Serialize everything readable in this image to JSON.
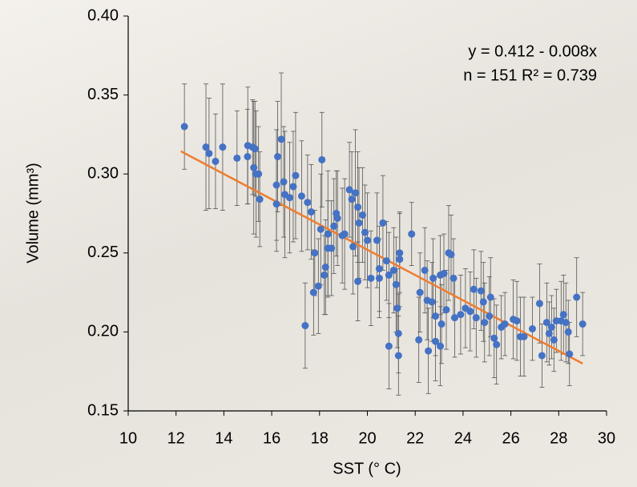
{
  "chart_data": {
    "type": "scatter",
    "x_label": "SST (° C)",
    "y_label": "Volume (mm³)",
    "equation": "y = 0.412 - 0.008x",
    "stats": "n = 151  R² = 0.739",
    "xlim": [
      10,
      30
    ],
    "xticks": [
      10,
      12,
      14,
      16,
      18,
      20,
      22,
      24,
      26,
      28,
      30
    ],
    "ylim": [
      0.15,
      0.4
    ],
    "yticks": [
      0.15,
      {
        "value": 0.2,
        "label": "0.20"
      },
      0.25,
      {
        "value": 0.3,
        "label": "0.30"
      },
      0.35,
      {
        "value": 0.4,
        "label": "0.40"
      }
    ],
    "grid": false,
    "color": "#4472c4",
    "error_color": "#555555",
    "trendline": {
      "intercept": 0.412,
      "slope": -0.008,
      "x_range": [
        12.2,
        29.0
      ],
      "color": "#ed7d31"
    },
    "x": [
      12.35,
      13.25,
      13.38,
      13.65,
      13.95,
      14.55,
      14.99,
      15.0,
      15.2,
      15.25,
      15.3,
      15.35,
      15.45,
      15.5,
      16.2,
      16.2,
      16.25,
      16.4,
      16.5,
      16.55,
      16.75,
      16.9,
      17.0,
      17.25,
      17.4,
      17.5,
      17.65,
      17.75,
      17.8,
      17.95,
      18.1,
      18.05,
      18.2,
      18.25,
      18.35,
      18.35,
      18.5,
      18.6,
      18.7,
      18.75,
      18.95,
      19.05,
      19.25,
      19.35,
      19.4,
      19.5,
      19.6,
      19.6,
      19.65,
      19.8,
      19.9,
      20.0,
      20.15,
      20.4,
      20.5,
      20.5,
      20.65,
      20.8,
      20.9,
      20.9,
      21.1,
      21.2,
      21.25,
      21.3,
      21.3,
      21.35,
      21.35,
      21.85,
      22.15,
      22.2,
      22.4,
      22.5,
      22.55,
      22.7,
      22.75,
      22.85,
      22.85,
      23.05,
      23.05,
      23.1,
      23.2,
      23.3,
      23.4,
      23.5,
      23.6,
      23.65,
      23.9,
      24.1,
      24.3,
      24.45,
      24.55,
      24.75,
      24.85,
      24.9,
      25.1,
      25.15,
      25.3,
      25.4,
      25.6,
      25.75,
      26.1,
      26.25,
      26.4,
      26.55,
      26.9,
      27.2,
      27.3,
      27.5,
      27.6,
      27.7,
      27.8,
      27.9,
      28.1,
      28.2,
      28.3,
      28.4,
      28.45,
      28.75,
      29.0
    ],
    "values": [
      0.33,
      0.317,
      0.313,
      0.308,
      0.317,
      0.31,
      0.311,
      0.318,
      0.317,
      0.304,
      0.316,
      0.3,
      0.3,
      0.284,
      0.293,
      0.281,
      0.311,
      0.322,
      0.295,
      0.287,
      0.285,
      0.292,
      0.299,
      0.286,
      0.204,
      0.282,
      0.276,
      0.225,
      0.25,
      0.229,
      0.309,
      0.265,
      0.236,
      0.241,
      0.262,
      0.253,
      0.253,
      0.267,
      0.275,
      0.272,
      0.261,
      0.262,
      0.29,
      0.284,
      0.254,
      0.288,
      0.279,
      0.232,
      0.269,
      0.274,
      0.263,
      0.258,
      0.234,
      0.258,
      0.24,
      0.234,
      0.269,
      0.245,
      0.191,
      0.236,
      0.239,
      0.23,
      0.215,
      0.199,
      0.185,
      0.25,
      0.246,
      0.262,
      0.195,
      0.225,
      0.239,
      0.22,
      0.188,
      0.219,
      0.234,
      0.21,
      0.194,
      0.236,
      0.191,
      0.205,
      0.237,
      0.214,
      0.25,
      0.249,
      0.234,
      0.209,
      0.211,
      0.215,
      0.213,
      0.227,
      0.209,
      0.226,
      0.219,
      0.206,
      0.21,
      0.222,
      0.196,
      0.192,
      0.203,
      0.205,
      0.208,
      0.207,
      0.197,
      0.197,
      0.202,
      0.218,
      0.185,
      0.206,
      0.199,
      0.203,
      0.195,
      0.207,
      0.207,
      0.211,
      0.206,
      0.2,
      0.186,
      0.222,
      0.205
    ],
    "errors": [
      0.027,
      0.04,
      0.035,
      0.03,
      0.04,
      0.03,
      0.03,
      0.037,
      0.03,
      0.042,
      0.03,
      0.04,
      0.03,
      0.03,
      0.035,
      0.03,
      0.035,
      0.042,
      0.035,
      0.04,
      0.035,
      0.035,
      0.04,
      0.035,
      0.027,
      0.03,
      0.03,
      0.027,
      0.027,
      0.03,
      0.03,
      0.035,
      0.025,
      0.03,
      0.04,
      0.03,
      0.03,
      0.03,
      0.027,
      0.03,
      0.03,
      0.035,
      0.03,
      0.03,
      0.03,
      0.04,
      0.035,
      0.025,
      0.035,
      0.03,
      0.03,
      0.03,
      0.03,
      0.03,
      0.027,
      0.025,
      0.03,
      0.025,
      0.027,
      0.027,
      0.027,
      0.03,
      0.025,
      0.025,
      0.025,
      0.025,
      0.03,
      0.02,
      0.027,
      0.025,
      0.027,
      0.025,
      0.027,
      0.025,
      0.025,
      0.025,
      0.025,
      0.025,
      0.025,
      0.025,
      0.025,
      0.025,
      0.03,
      0.025,
      0.025,
      0.025,
      0.025,
      0.025,
      0.025,
      0.025,
      0.025,
      0.025,
      0.025,
      0.025,
      0.025,
      0.025,
      0.025,
      0.025,
      0.02,
      0.02,
      0.025,
      0.025,
      0.025,
      0.025,
      0.02,
      0.025,
      0.02,
      0.025,
      0.02,
      0.02,
      0.02,
      0.02,
      0.025,
      0.025,
      0.025,
      0.02,
      0.02,
      0.025,
      0.02
    ]
  }
}
